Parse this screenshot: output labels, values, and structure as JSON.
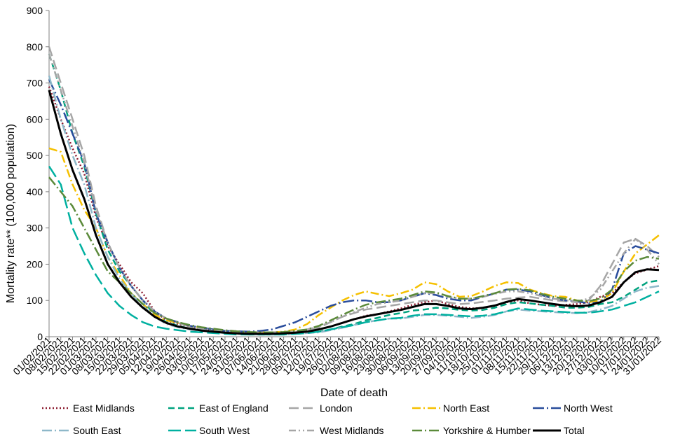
{
  "chart_data": {
    "type": "line",
    "title": "",
    "xlabel": "Date of death",
    "ylabel": "Mortality rate** (100,000 population)",
    "ylim": [
      0,
      900
    ],
    "yticks": [
      0,
      100,
      200,
      300,
      400,
      500,
      600,
      700,
      800,
      900
    ],
    "grid": false,
    "legend_position": "bottom",
    "categories": [
      "01/02/2021",
      "08/02/2021",
      "15/02/2021",
      "22/02/2021",
      "01/03/2021",
      "08/03/2021",
      "15/03/2021",
      "22/03/2021",
      "29/03/2021",
      "05/04/2021",
      "12/04/2021",
      "19/04/2021",
      "26/04/2021",
      "03/05/2021",
      "10/05/2021",
      "17/05/2021",
      "24/05/2021",
      "31/05/2021",
      "07/06/2021",
      "14/06/2021",
      "21/06/2021",
      "28/06/2021",
      "05/07/2021",
      "12/07/2021",
      "19/07/2021",
      "26/07/2021",
      "02/08/2021",
      "09/08/2021",
      "16/08/2021",
      "23/08/2021",
      "30/08/2021",
      "06/09/2021",
      "13/09/2021",
      "20/09/2021",
      "27/09/2021",
      "04/10/2021",
      "11/10/2021",
      "18/10/2021",
      "25/10/2021",
      "01/11/2021",
      "08/11/2021",
      "15/11/2021",
      "22/11/2021",
      "29/11/2021",
      "06/12/2021",
      "13/12/2021",
      "20/12/2021",
      "27/12/2021",
      "03/01/2022",
      "10/01/2022",
      "17/01/2022",
      "24/01/2022",
      "31/01/2022"
    ],
    "series": [
      {
        "name": "East Midlands",
        "color": "#8b1a2e",
        "dash": "2,3",
        "width": 2.5,
        "values": [
          690,
          600,
          520,
          450,
          330,
          250,
          200,
          150,
          120,
          70,
          45,
          35,
          28,
          22,
          18,
          14,
          12,
          10,
          10,
          10,
          10,
          12,
          15,
          20,
          28,
          38,
          48,
          58,
          62,
          70,
          78,
          88,
          95,
          100,
          90,
          82,
          78,
          80,
          85,
          95,
          100,
          92,
          88,
          85,
          88,
          90,
          95,
          110,
          120,
          150,
          175,
          185,
          195
        ]
      },
      {
        "name": "East of England",
        "color": "#00a37f",
        "dash": "9,5",
        "width": 2.5,
        "values": [
          780,
          680,
          560,
          470,
          340,
          240,
          180,
          140,
          100,
          60,
          40,
          30,
          22,
          18,
          14,
          10,
          8,
          6,
          6,
          6,
          6,
          8,
          10,
          14,
          20,
          28,
          35,
          45,
          52,
          60,
          65,
          72,
          75,
          80,
          78,
          74,
          72,
          74,
          80,
          90,
          95,
          92,
          88,
          85,
          80,
          80,
          82,
          90,
          95,
          110,
          130,
          150,
          155
        ]
      },
      {
        "name": "London",
        "color": "#a6a6a6",
        "dash": "14,6",
        "width": 2.5,
        "values": [
          800,
          700,
          600,
          500,
          360,
          260,
          190,
          140,
          100,
          70,
          50,
          38,
          28,
          22,
          18,
          14,
          12,
          10,
          10,
          10,
          12,
          14,
          18,
          25,
          40,
          55,
          65,
          75,
          80,
          85,
          90,
          95,
          100,
          100,
          95,
          90,
          92,
          96,
          100,
          105,
          108,
          110,
          105,
          100,
          98,
          95,
          100,
          140,
          200,
          260,
          270,
          250,
          220
        ]
      },
      {
        "name": "North East",
        "color": "#f5c000",
        "dash": "12,4,2,4",
        "width": 2.5,
        "values": [
          520,
          510,
          420,
          350,
          300,
          220,
          170,
          120,
          90,
          60,
          45,
          38,
          30,
          25,
          20,
          16,
          14,
          12,
          12,
          12,
          14,
          20,
          35,
          60,
          80,
          100,
          115,
          125,
          118,
          112,
          120,
          130,
          150,
          145,
          125,
          110,
          112,
          125,
          140,
          150,
          148,
          130,
          120,
          112,
          110,
          100,
          95,
          100,
          120,
          180,
          230,
          255,
          280
        ]
      },
      {
        "name": "North West",
        "color": "#2a4d9c",
        "dash": "16,4,2,4",
        "width": 2.5,
        "values": [
          710,
          640,
          560,
          480,
          340,
          260,
          190,
          140,
          100,
          70,
          50,
          40,
          30,
          25,
          20,
          16,
          15,
          14,
          16,
          20,
          30,
          40,
          55,
          70,
          85,
          95,
          100,
          100,
          95,
          95,
          100,
          110,
          120,
          115,
          105,
          100,
          100,
          110,
          120,
          130,
          130,
          125,
          115,
          105,
          100,
          98,
          92,
          95,
          130,
          230,
          250,
          240,
          230
        ]
      },
      {
        "name": "South East",
        "color": "#8eb8c9",
        "dash": "14,4,2,4",
        "width": 2.5,
        "values": [
          720,
          600,
          500,
          420,
          300,
          220,
          160,
          120,
          85,
          55,
          35,
          26,
          20,
          16,
          12,
          10,
          8,
          6,
          6,
          6,
          6,
          8,
          10,
          12,
          18,
          25,
          32,
          40,
          45,
          50,
          50,
          55,
          60,
          60,
          58,
          55,
          52,
          55,
          60,
          70,
          75,
          72,
          70,
          68,
          66,
          65,
          68,
          75,
          85,
          105,
          125,
          135,
          140
        ]
      },
      {
        "name": "South West",
        "color": "#00b0a0",
        "dash": "18,6",
        "width": 2.5,
        "values": [
          470,
          420,
          300,
          230,
          170,
          120,
          85,
          60,
          40,
          28,
          22,
          18,
          14,
          12,
          10,
          8,
          6,
          6,
          6,
          6,
          6,
          8,
          10,
          14,
          20,
          26,
          32,
          40,
          45,
          50,
          52,
          58,
          62,
          62,
          60,
          58,
          56,
          58,
          62,
          70,
          78,
          75,
          72,
          70,
          68,
          66,
          66,
          70,
          75,
          85,
          95,
          110,
          125
        ]
      },
      {
        "name": "West Midlands",
        "color": "#a6a6a6",
        "dash": "10,4,2,4,2,4",
        "width": 2.5,
        "values": [
          780,
          680,
          580,
          480,
          350,
          260,
          190,
          140,
          100,
          70,
          50,
          38,
          28,
          22,
          18,
          15,
          13,
          12,
          12,
          12,
          13,
          15,
          20,
          28,
          40,
          55,
          68,
          80,
          90,
          95,
          100,
          110,
          120,
          120,
          110,
          105,
          105,
          110,
          118,
          125,
          125,
          120,
          112,
          105,
          100,
          98,
          105,
          130,
          180,
          230,
          270,
          240,
          200
        ]
      },
      {
        "name": "Yorkshire & Humber",
        "color": "#5b8a3a",
        "dash": "14,4,2,4",
        "width": 2.5,
        "values": [
          440,
          400,
          360,
          300,
          240,
          180,
          150,
          120,
          90,
          65,
          50,
          40,
          32,
          26,
          22,
          18,
          15,
          13,
          12,
          12,
          13,
          16,
          20,
          30,
          45,
          60,
          75,
          88,
          95,
          100,
          105,
          115,
          125,
          122,
          112,
          105,
          105,
          112,
          120,
          130,
          132,
          128,
          118,
          110,
          105,
          100,
          98,
          105,
          130,
          180,
          210,
          220,
          215
        ]
      },
      {
        "name": "Total",
        "color": "#000000",
        "dash": "",
        "width": 3,
        "values": [
          680,
          560,
          460,
          380,
          280,
          200,
          150,
          110,
          80,
          55,
          38,
          28,
          22,
          17,
          14,
          11,
          9,
          8,
          8,
          8,
          9,
          11,
          14,
          20,
          28,
          38,
          48,
          56,
          62,
          68,
          74,
          82,
          90,
          90,
          85,
          78,
          76,
          80,
          86,
          96,
          104,
          100,
          95,
          90,
          86,
          84,
          86,
          95,
          110,
          150,
          178,
          186,
          184
        ]
      }
    ]
  }
}
